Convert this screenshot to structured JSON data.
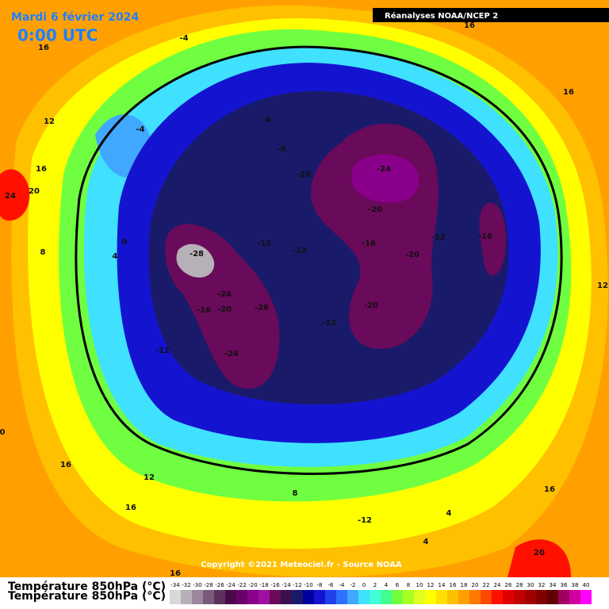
{
  "header": {
    "title": "Mardi 6 février 2024",
    "time": "0:00 UTC",
    "source": "Réanalyses NOAA/NCEP 2"
  },
  "copyright": "Copyright ©2021 Meteociel.fr - Source NOAA",
  "legend": {
    "title": "Température 850hPa (°C)",
    "values": [
      -34,
      -32,
      -30,
      -28,
      -26,
      -24,
      -22,
      -20,
      -18,
      -16,
      -14,
      -12,
      -10,
      -8,
      -6,
      -4,
      -2,
      0,
      2,
      4,
      6,
      8,
      10,
      12,
      14,
      16,
      18,
      20,
      22,
      24,
      26,
      28,
      30,
      32,
      34,
      36,
      38,
      40
    ],
    "colors": [
      "#d8d8d8",
      "#b8b0b8",
      "#9a889a",
      "#7a5a7a",
      "#5e305e",
      "#4a0a4a",
      "#6a006a",
      "#8a008a",
      "#a010a0",
      "#6a0a5a",
      "#3a1050",
      "#1a1a6a",
      "#0000a0",
      "#1414d0",
      "#2040e8",
      "#3070ff",
      "#40a8ff",
      "#40e0ff",
      "#40ffd8",
      "#40ff90",
      "#70ff40",
      "#a8ff20",
      "#e0ff20",
      "#ffff00",
      "#ffe000",
      "#ffc000",
      "#ffa000",
      "#ff7800",
      "#ff4800",
      "#ff1000",
      "#e00000",
      "#c00000",
      "#a00000",
      "#800000",
      "#600000",
      "#a00060",
      "#d000a0",
      "#ff00ff"
    ]
  },
  "contour_labels": [
    "-4",
    "16",
    "16",
    "16",
    "12",
    "-4",
    "-4",
    "-8",
    "16",
    "24",
    "20",
    "-20",
    "-24",
    "-20",
    "0",
    "8",
    "4",
    "-28",
    "-12",
    "-12",
    "-16",
    "-12",
    "-16",
    "-20",
    "12",
    "-24",
    "-16",
    "-20",
    "-28",
    "-20",
    "-12",
    "-12",
    "-24",
    "16",
    "12",
    "16",
    "8",
    "16",
    "-12",
    "4",
    "4",
    "20",
    "16",
    "0"
  ]
}
